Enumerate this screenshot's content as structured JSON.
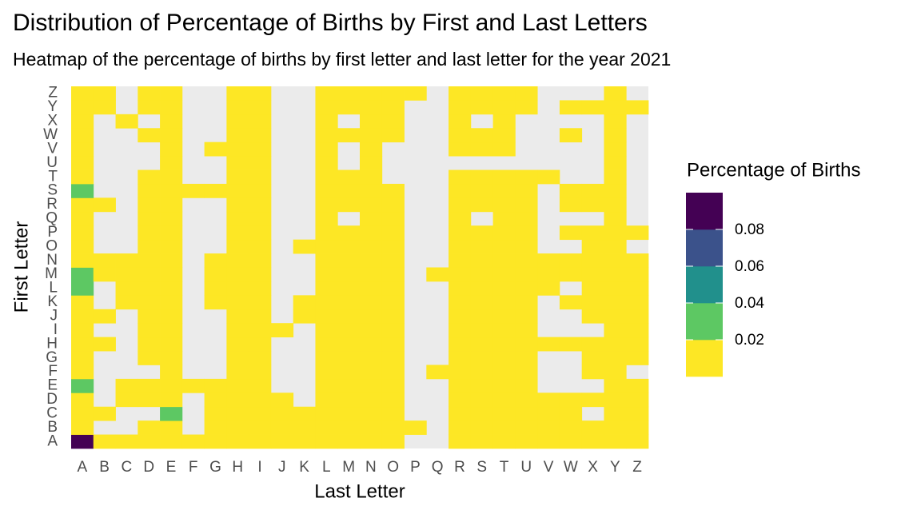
{
  "chart_data": {
    "type": "heatmap",
    "title": "Distribution of Percentage of Births by First and Last Letters",
    "subtitle": "Heatmap of the percentage of births by first letter and last letter for the year 2021",
    "x_label": "Last Letter",
    "y_label": "First Letter",
    "legend_title": "Percentage of Births",
    "x": [
      "A",
      "B",
      "C",
      "D",
      "E",
      "F",
      "G",
      "H",
      "I",
      "J",
      "K",
      "L",
      "M",
      "N",
      "O",
      "P",
      "Q",
      "R",
      "S",
      "T",
      "U",
      "V",
      "W",
      "X",
      "Y",
      "Z"
    ],
    "y": [
      "A",
      "B",
      "C",
      "D",
      "E",
      "F",
      "G",
      "H",
      "I",
      "J",
      "K",
      "L",
      "M",
      "N",
      "O",
      "P",
      "Q",
      "R",
      "S",
      "T",
      "U",
      "V",
      "W",
      "X",
      "Y",
      "Z"
    ],
    "breaks": [
      0.02,
      0.04,
      0.06,
      0.08
    ],
    "colors": [
      "#fde725",
      "#5dc863",
      "#21908c",
      "#3b528b",
      "#440154"
    ],
    "missing_color": "#ebebeb",
    "values": [
      [
        0.09,
        0.01,
        0.01,
        0.01,
        0.01,
        0.01,
        0.01,
        0.01,
        0.01,
        0.01,
        0.01,
        0.01,
        0.01,
        0.01,
        0.01,
        null,
        null,
        0.01,
        0.01,
        0.01,
        0.01,
        0.01,
        0.01,
        0.01,
        0.01,
        0.01
      ],
      [
        0.01,
        null,
        null,
        0.01,
        0.01,
        null,
        0.01,
        0.01,
        0.01,
        0.01,
        0.01,
        0.01,
        0.01,
        0.01,
        0.01,
        0.01,
        null,
        0.01,
        0.01,
        0.01,
        0.01,
        0.01,
        0.01,
        0.01,
        0.01,
        0.01
      ],
      [
        0.01,
        0.01,
        null,
        null,
        0.03,
        null,
        0.01,
        0.01,
        0.01,
        0.01,
        0.01,
        0.01,
        0.01,
        0.01,
        0.01,
        null,
        null,
        0.01,
        0.01,
        0.01,
        0.01,
        0.01,
        0.01,
        null,
        0.01,
        0.01
      ],
      [
        0.01,
        null,
        0.01,
        0.01,
        0.01,
        null,
        0.01,
        0.01,
        0.01,
        0.01,
        null,
        0.01,
        0.01,
        0.01,
        0.01,
        null,
        null,
        0.01,
        0.01,
        0.01,
        0.01,
        0.01,
        0.01,
        0.01,
        0.01,
        0.01
      ],
      [
        0.03,
        null,
        0.01,
        0.01,
        0.01,
        0.01,
        0.01,
        0.01,
        0.01,
        null,
        null,
        0.01,
        0.01,
        0.01,
        0.01,
        null,
        null,
        0.01,
        0.01,
        0.01,
        0.01,
        null,
        null,
        null,
        0.01,
        0.01
      ],
      [
        0.01,
        null,
        null,
        null,
        0.01,
        null,
        null,
        0.01,
        0.01,
        null,
        null,
        0.01,
        0.01,
        0.01,
        0.01,
        null,
        0.01,
        0.01,
        0.01,
        0.01,
        0.01,
        null,
        null,
        0.01,
        0.01,
        null
      ],
      [
        0.01,
        null,
        null,
        0.01,
        0.01,
        null,
        null,
        0.01,
        0.01,
        null,
        null,
        0.01,
        0.01,
        0.01,
        0.01,
        null,
        null,
        0.01,
        0.01,
        0.01,
        0.01,
        null,
        null,
        0.01,
        0.01,
        0.01
      ],
      [
        0.01,
        0.01,
        null,
        0.01,
        0.01,
        null,
        null,
        0.01,
        0.01,
        null,
        null,
        0.01,
        0.01,
        0.01,
        0.01,
        null,
        null,
        0.01,
        0.01,
        0.01,
        0.01,
        0.01,
        0.01,
        0.01,
        0.01,
        0.01
      ],
      [
        0.01,
        null,
        null,
        0.01,
        0.01,
        null,
        null,
        0.01,
        0.01,
        0.01,
        null,
        0.01,
        0.01,
        0.01,
        0.01,
        null,
        null,
        0.01,
        0.01,
        0.01,
        0.01,
        null,
        null,
        null,
        0.01,
        0.01
      ],
      [
        0.01,
        0.01,
        null,
        0.01,
        0.01,
        null,
        null,
        0.01,
        0.01,
        null,
        0.01,
        0.01,
        0.01,
        0.01,
        0.01,
        null,
        null,
        0.01,
        0.01,
        0.01,
        0.01,
        null,
        null,
        0.01,
        0.01,
        0.01
      ],
      [
        0.01,
        null,
        0.01,
        0.01,
        0.01,
        null,
        0.01,
        0.01,
        0.01,
        null,
        0.01,
        0.01,
        0.01,
        0.01,
        0.01,
        null,
        null,
        0.01,
        0.01,
        0.01,
        0.01,
        null,
        0.01,
        0.01,
        0.01,
        0.01
      ],
      [
        0.03,
        null,
        0.01,
        0.01,
        0.01,
        null,
        0.01,
        0.01,
        0.01,
        null,
        null,
        0.01,
        0.01,
        0.01,
        0.01,
        null,
        null,
        0.01,
        0.01,
        0.01,
        0.01,
        0.01,
        null,
        0.01,
        0.01,
        0.01
      ],
      [
        0.03,
        0.01,
        0.01,
        0.01,
        0.01,
        null,
        0.01,
        0.01,
        0.01,
        null,
        null,
        0.01,
        0.01,
        0.01,
        0.01,
        null,
        0.01,
        0.01,
        0.01,
        0.01,
        0.01,
        0.01,
        0.01,
        0.01,
        0.01,
        0.01
      ],
      [
        0.01,
        0.01,
        0.01,
        0.01,
        0.01,
        null,
        0.01,
        0.01,
        0.01,
        null,
        null,
        0.01,
        0.01,
        0.01,
        0.01,
        null,
        null,
        0.01,
        0.01,
        0.01,
        0.01,
        0.01,
        0.01,
        0.01,
        0.01,
        0.01
      ],
      [
        0.01,
        null,
        null,
        0.01,
        0.01,
        null,
        null,
        0.01,
        0.01,
        null,
        0.01,
        0.01,
        0.01,
        0.01,
        0.01,
        null,
        null,
        0.01,
        0.01,
        0.01,
        0.01,
        null,
        null,
        0.01,
        0.01,
        null
      ],
      [
        0.01,
        null,
        null,
        0.01,
        0.01,
        null,
        null,
        0.01,
        0.01,
        null,
        null,
        0.01,
        0.01,
        0.01,
        0.01,
        null,
        null,
        0.01,
        0.01,
        0.01,
        0.01,
        null,
        0.01,
        0.01,
        0.01,
        0.01
      ],
      [
        0.01,
        null,
        null,
        0.01,
        0.01,
        null,
        null,
        0.01,
        0.01,
        null,
        null,
        0.01,
        null,
        0.01,
        0.01,
        null,
        null,
        0.01,
        null,
        0.01,
        0.01,
        null,
        null,
        null,
        0.01,
        null
      ],
      [
        0.01,
        0.01,
        null,
        0.01,
        0.01,
        null,
        null,
        0.01,
        0.01,
        null,
        null,
        0.01,
        0.01,
        0.01,
        0.01,
        null,
        null,
        0.01,
        0.01,
        0.01,
        0.01,
        null,
        0.01,
        0.01,
        0.01,
        null
      ],
      [
        0.03,
        null,
        null,
        0.01,
        0.01,
        0.01,
        0.01,
        0.01,
        0.01,
        null,
        null,
        0.01,
        0.01,
        0.01,
        0.01,
        null,
        null,
        0.01,
        0.01,
        0.01,
        0.01,
        null,
        0.01,
        0.01,
        0.01,
        null
      ],
      [
        0.01,
        null,
        null,
        0.01,
        0.01,
        null,
        null,
        0.01,
        0.01,
        null,
        null,
        0.01,
        0.01,
        0.01,
        null,
        null,
        null,
        0.01,
        0.01,
        0.01,
        0.01,
        0.01,
        null,
        null,
        0.01,
        null
      ],
      [
        0.01,
        null,
        null,
        null,
        0.01,
        null,
        null,
        0.01,
        0.01,
        null,
        null,
        0.01,
        null,
        0.01,
        null,
        null,
        null,
        null,
        null,
        null,
        null,
        null,
        null,
        null,
        0.01,
        null
      ],
      [
        0.01,
        null,
        null,
        null,
        0.01,
        null,
        0.01,
        0.01,
        0.01,
        null,
        null,
        0.01,
        null,
        0.01,
        null,
        null,
        null,
        0.01,
        0.01,
        0.01,
        null,
        null,
        null,
        null,
        0.01,
        null
      ],
      [
        0.01,
        null,
        null,
        0.01,
        0.01,
        null,
        null,
        0.01,
        0.01,
        null,
        null,
        0.01,
        0.01,
        0.01,
        0.01,
        null,
        null,
        0.01,
        0.01,
        0.01,
        null,
        null,
        0.01,
        null,
        0.01,
        null
      ],
      [
        0.01,
        null,
        0.01,
        null,
        0.01,
        null,
        null,
        0.01,
        0.01,
        null,
        null,
        0.01,
        null,
        0.01,
        0.01,
        null,
        null,
        0.01,
        null,
        0.01,
        null,
        null,
        null,
        null,
        0.01,
        null
      ],
      [
        0.01,
        0.01,
        null,
        0.01,
        0.01,
        null,
        null,
        0.01,
        0.01,
        null,
        null,
        0.01,
        0.01,
        0.01,
        0.01,
        null,
        null,
        0.01,
        0.01,
        0.01,
        0.01,
        null,
        0.01,
        0.01,
        0.01,
        0.01
      ],
      [
        0.01,
        0.01,
        null,
        0.01,
        0.01,
        null,
        null,
        0.01,
        0.01,
        null,
        null,
        0.01,
        0.01,
        0.01,
        0.01,
        0.01,
        null,
        0.01,
        0.01,
        0.01,
        0.01,
        null,
        null,
        null,
        0.01,
        null
      ]
    ]
  }
}
